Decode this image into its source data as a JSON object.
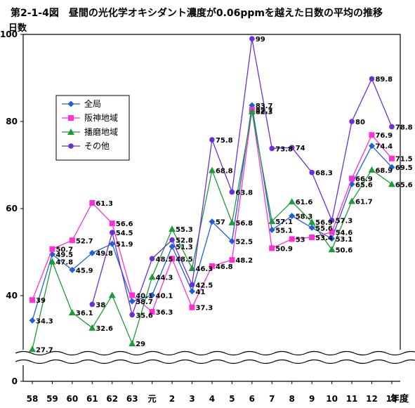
{
  "chart_data": {
    "type": "line",
    "title": "第2-1-4図　昼間の光化学オキシダント濃度が0.06ppmを越えた日数の平均の推移",
    "ylabel": "日数",
    "xlabel": "年度",
    "ylim": [
      0,
      100
    ],
    "yticks": [
      "0",
      "40",
      "60",
      "80",
      "100"
    ],
    "axis_break": true,
    "categories": [
      "58",
      "59",
      "60",
      "61",
      "62",
      "63",
      "元",
      "2",
      "3",
      "4",
      "5",
      "6",
      "7",
      "8",
      "9",
      "10",
      "11",
      "12",
      "13"
    ],
    "legend_position": "upper-left",
    "series": [
      {
        "name": "全局",
        "color": "#1f5fd8",
        "marker": "diamond",
        "values": [
          34.3,
          49.5,
          45.9,
          49.8,
          51.9,
          38.7,
          40.1,
          51.3,
          41,
          57,
          52.5,
          83.7,
          55.1,
          58.3,
          55.6,
          53.1,
          65.6,
          74.4,
          69.5
        ]
      },
      {
        "name": "阪神地域",
        "color": "#ff2fd6",
        "marker": "square",
        "values": [
          39,
          50.7,
          52.7,
          61.3,
          56.6,
          40.1,
          36.3,
          48.5,
          37.3,
          46.8,
          48.2,
          82.7,
          50.9,
          53,
          53.4,
          54.6,
          66.9,
          76.9,
          71.5
        ]
      },
      {
        "name": "播磨地域",
        "color": "#1e9a36",
        "marker": "triangle",
        "values": [
          27.7,
          47.8,
          36.1,
          32.6,
          40.1,
          29,
          44.3,
          55.3,
          46.3,
          68.8,
          56.8,
          82.3,
          57.1,
          61.6,
          56.9,
          50.6,
          61.7,
          68.9,
          65.6
        ]
      },
      {
        "name": "その他",
        "color": "#6a2fd8",
        "marker": "circle",
        "values": [
          null,
          null,
          null,
          38,
          54.5,
          35.6,
          48.5,
          52.8,
          42.5,
          75.8,
          63.8,
          99,
          73.8,
          74,
          68.3,
          57.3,
          80,
          89.8,
          78.8
        ]
      }
    ],
    "data_labels": [
      {
        "series": 0,
        "index": 0,
        "text": "34.3"
      },
      {
        "series": 0,
        "index": 1,
        "text": "49.5"
      },
      {
        "series": 0,
        "index": 2,
        "text": "45.9"
      },
      {
        "series": 0,
        "index": 3,
        "text": "49.8"
      },
      {
        "series": 0,
        "index": 4,
        "text": "51.9"
      },
      {
        "series": 0,
        "index": 5,
        "text": "38.7"
      },
      {
        "series": 0,
        "index": 6,
        "text": "40.1"
      },
      {
        "series": 0,
        "index": 7,
        "text": "51.3"
      },
      {
        "series": 0,
        "index": 8,
        "text": "41"
      },
      {
        "series": 0,
        "index": 9,
        "text": "57"
      },
      {
        "series": 0,
        "index": 10,
        "text": "52.5"
      },
      {
        "series": 0,
        "index": 11,
        "text": "83.7"
      },
      {
        "series": 0,
        "index": 12,
        "text": "55.1"
      },
      {
        "series": 0,
        "index": 13,
        "text": "58.3"
      },
      {
        "series": 0,
        "index": 14,
        "text": "55.6"
      },
      {
        "series": 0,
        "index": 15,
        "text": "53.1"
      },
      {
        "series": 0,
        "index": 16,
        "text": "65.6"
      },
      {
        "series": 0,
        "index": 17,
        "text": "74.4"
      },
      {
        "series": 0,
        "index": 18,
        "text": "69.5"
      },
      {
        "series": 1,
        "index": 0,
        "text": "39"
      },
      {
        "series": 1,
        "index": 1,
        "text": "50.7"
      },
      {
        "series": 1,
        "index": 2,
        "text": "52.7"
      },
      {
        "series": 1,
        "index": 3,
        "text": "61.3"
      },
      {
        "series": 1,
        "index": 4,
        "text": "56.6"
      },
      {
        "series": 1,
        "index": 5,
        "text": "40.1"
      },
      {
        "series": 1,
        "index": 6,
        "text": "36.3"
      },
      {
        "series": 1,
        "index": 7,
        "text": "48.5"
      },
      {
        "series": 1,
        "index": 8,
        "text": "37.3"
      },
      {
        "series": 1,
        "index": 9,
        "text": "46.8"
      },
      {
        "series": 1,
        "index": 10,
        "text": "48.2"
      },
      {
        "series": 1,
        "index": 11,
        "text": "82.7"
      },
      {
        "series": 1,
        "index": 12,
        "text": "50.9"
      },
      {
        "series": 1,
        "index": 13,
        "text": "53"
      },
      {
        "series": 1,
        "index": 14,
        "text": "53.4"
      },
      {
        "series": 1,
        "index": 15,
        "text": "54.6"
      },
      {
        "series": 1,
        "index": 16,
        "text": "66.9"
      },
      {
        "series": 1,
        "index": 17,
        "text": "76.9"
      },
      {
        "series": 1,
        "index": 18,
        "text": "71.5"
      },
      {
        "series": 2,
        "index": 0,
        "text": "27.7"
      },
      {
        "series": 2,
        "index": 1,
        "text": "47.8"
      },
      {
        "series": 2,
        "index": 2,
        "text": "36.1"
      },
      {
        "series": 2,
        "index": 3,
        "text": "32.6"
      },
      {
        "series": 2,
        "index": 5,
        "text": "29"
      },
      {
        "series": 2,
        "index": 6,
        "text": "44.3"
      },
      {
        "series": 2,
        "index": 7,
        "text": "55.3"
      },
      {
        "series": 2,
        "index": 8,
        "text": "46.3"
      },
      {
        "series": 2,
        "index": 9,
        "text": "68.8"
      },
      {
        "series": 2,
        "index": 10,
        "text": "56.8"
      },
      {
        "series": 2,
        "index": 11,
        "text": "82.3"
      },
      {
        "series": 2,
        "index": 12,
        "text": "57.1"
      },
      {
        "series": 2,
        "index": 13,
        "text": "61.6"
      },
      {
        "series": 2,
        "index": 14,
        "text": "56.9"
      },
      {
        "series": 2,
        "index": 15,
        "text": "50.6"
      },
      {
        "series": 2,
        "index": 16,
        "text": "61.7"
      },
      {
        "series": 2,
        "index": 17,
        "text": "68.9"
      },
      {
        "series": 2,
        "index": 18,
        "text": "65.6"
      },
      {
        "series": 3,
        "index": 3,
        "text": "38"
      },
      {
        "series": 3,
        "index": 4,
        "text": "54.5"
      },
      {
        "series": 3,
        "index": 5,
        "text": "35.6"
      },
      {
        "series": 3,
        "index": 6,
        "text": "48.5"
      },
      {
        "series": 3,
        "index": 7,
        "text": "52.8"
      },
      {
        "series": 3,
        "index": 8,
        "text": "42.5"
      },
      {
        "series": 3,
        "index": 9,
        "text": "75.8"
      },
      {
        "series": 3,
        "index": 10,
        "text": "63.8"
      },
      {
        "series": 3,
        "index": 11,
        "text": "99"
      },
      {
        "series": 3,
        "index": 12,
        "text": "73.8"
      },
      {
        "series": 3,
        "index": 13,
        "text": "74"
      },
      {
        "series": 3,
        "index": 14,
        "text": "68.3"
      },
      {
        "series": 3,
        "index": 15,
        "text": "57.3"
      },
      {
        "series": 3,
        "index": 16,
        "text": "80"
      },
      {
        "series": 3,
        "index": 17,
        "text": "89.8"
      },
      {
        "series": 3,
        "index": 18,
        "text": "78.8"
      }
    ]
  }
}
